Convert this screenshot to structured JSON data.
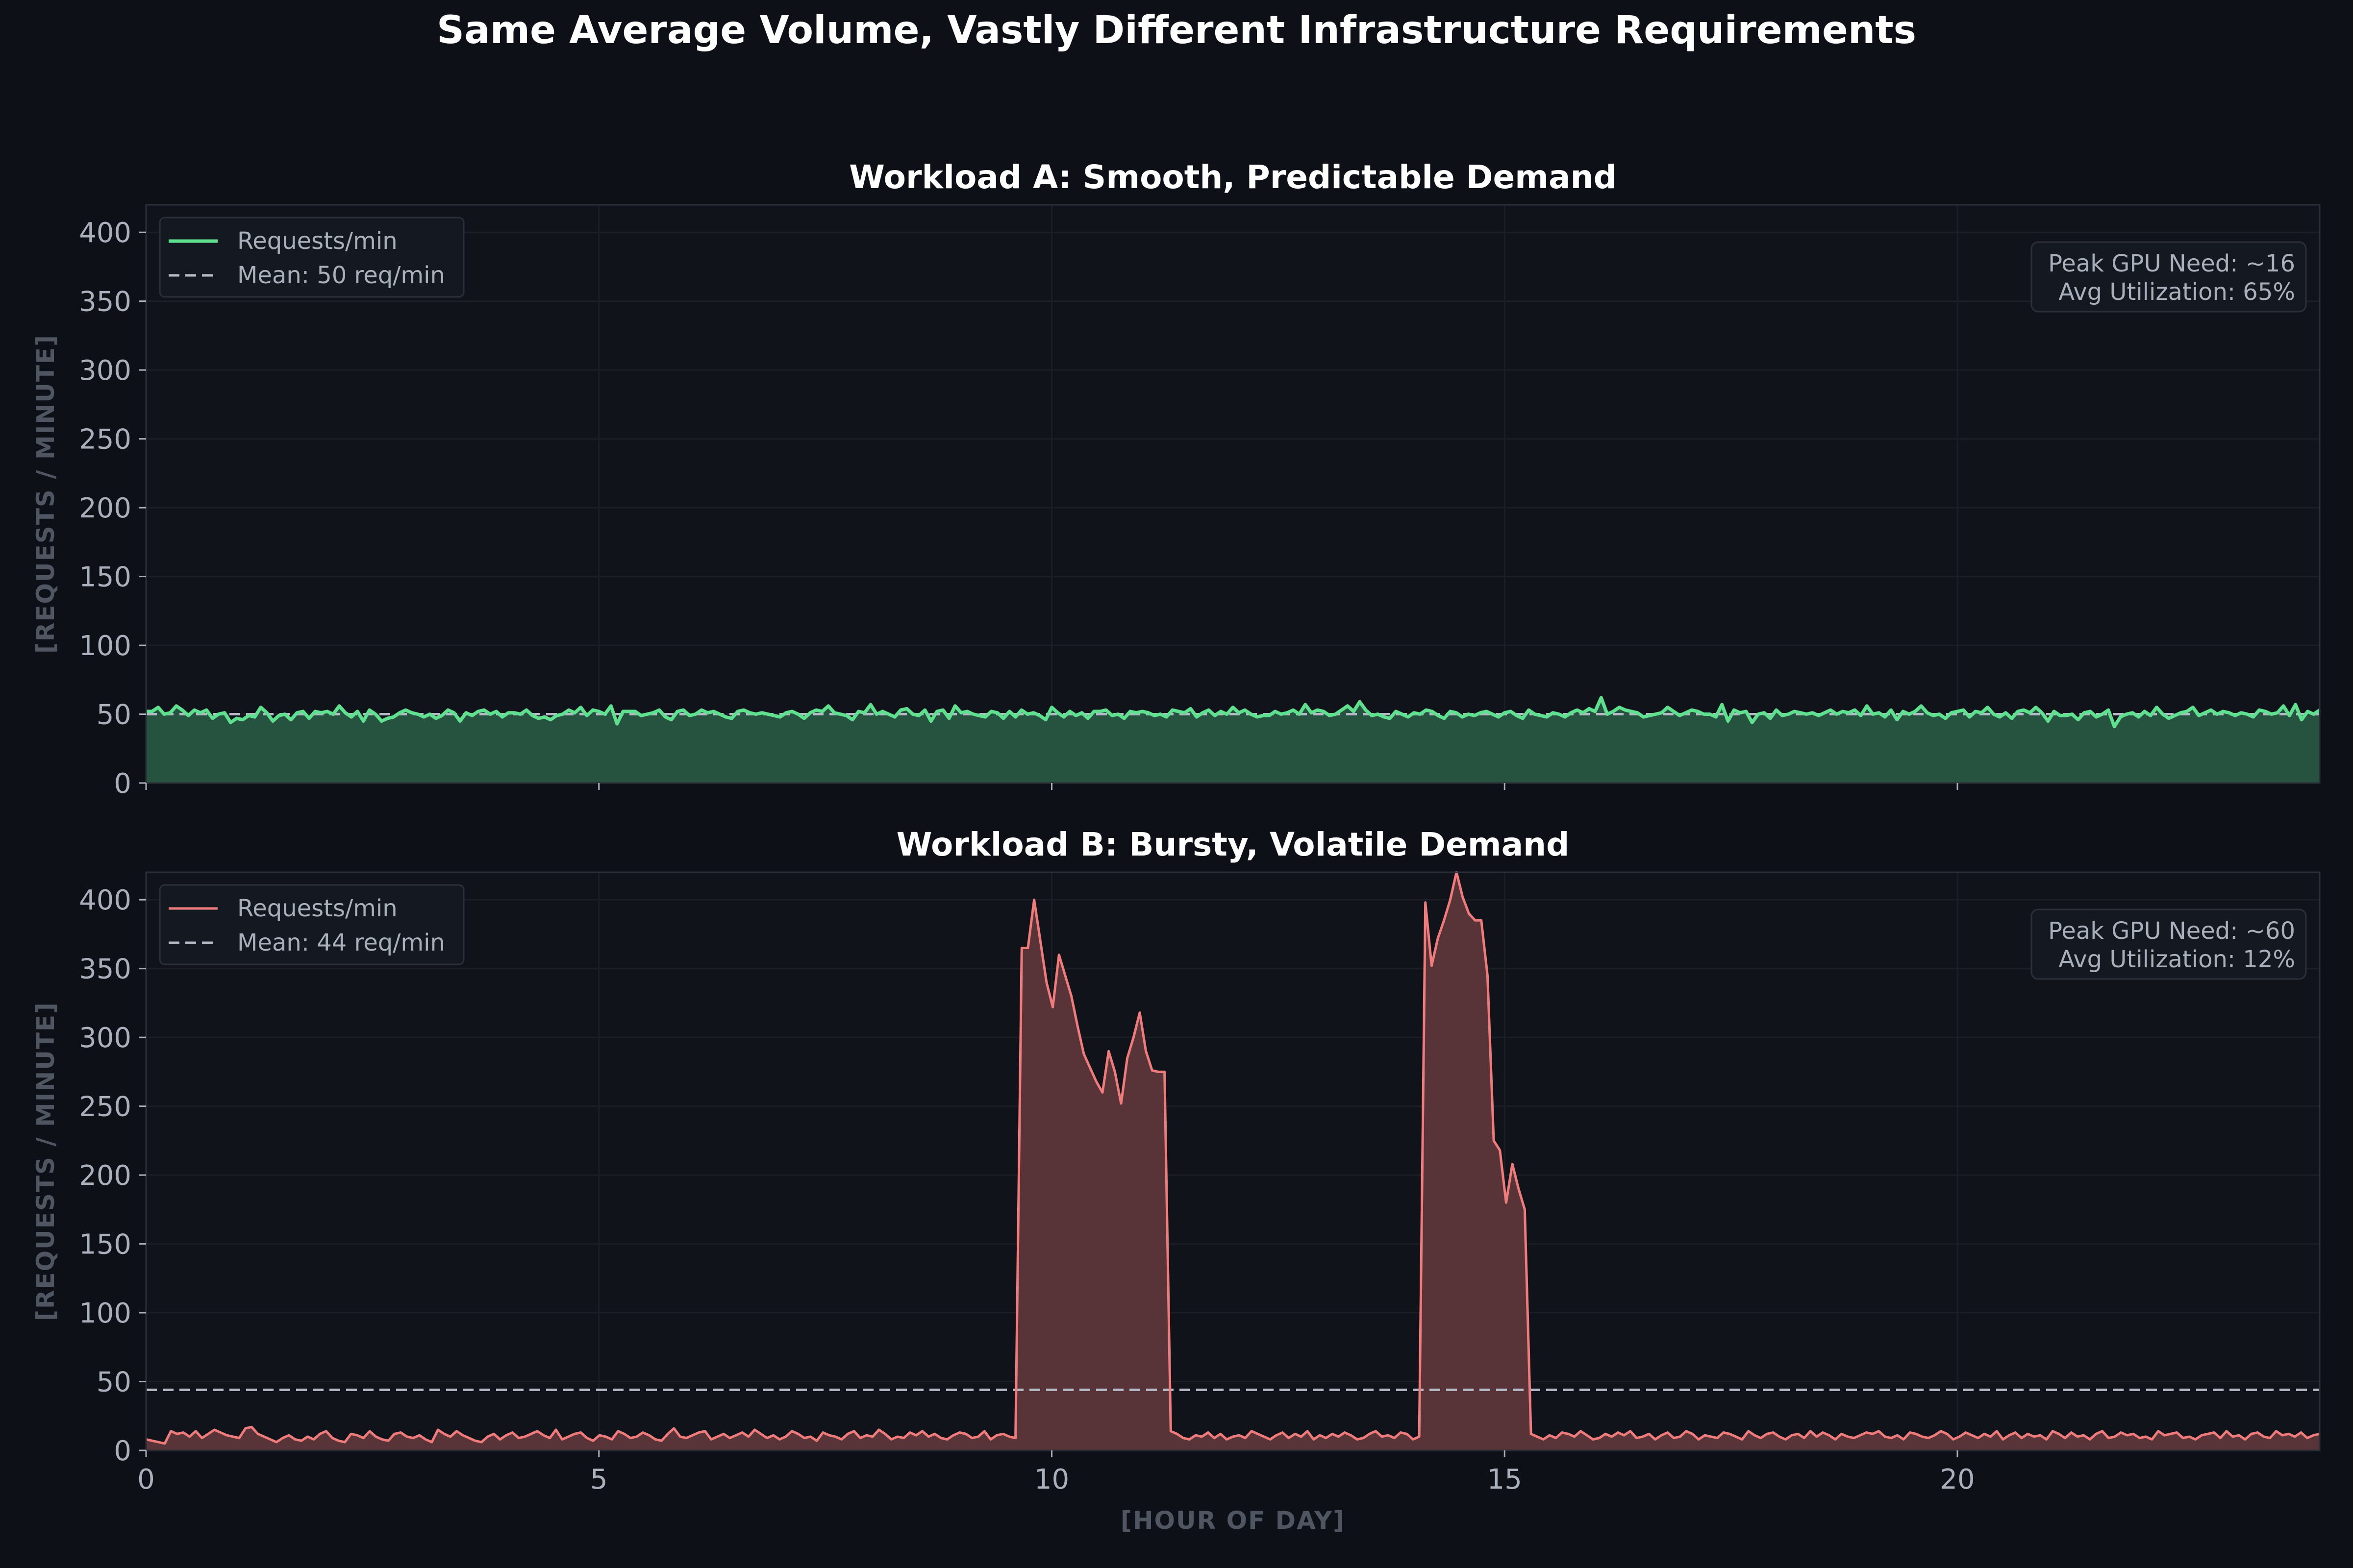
{
  "title": "Same Average Volume, Vastly Different Infrastructure Requirements",
  "colors": {
    "background": "#0d1016",
    "plot_bg": "#10131a",
    "grid": "#1a1e25",
    "spine": "#2a2f37",
    "series_a": "#5ee08e",
    "fill_a": "#265340",
    "series_b": "#f07b7b",
    "fill_b": "#583337",
    "mean_line": "#b5bac6"
  },
  "chart_data": [
    {
      "type": "area",
      "title": "Workload A: Smooth, Predictable Demand",
      "xlabel": "",
      "ylabel": "[REQUESTS / MINUTE]",
      "xlim": [
        0,
        24
      ],
      "ylim": [
        0,
        420
      ],
      "yticks": [
        0,
        50,
        100,
        150,
        200,
        250,
        300,
        350,
        400
      ],
      "xticks": [
        0,
        5,
        10,
        15,
        20
      ],
      "show_xticklabels": false,
      "grid": true,
      "legend_position": "upper-left",
      "legend": [
        "Requests/min",
        "Mean: 50 req/min"
      ],
      "mean": 50,
      "annotation": [
        "Peak GPU Need: ~16",
        "Avg Utilization: 65%"
      ],
      "annotation_position": "upper-right",
      "series": [
        {
          "name": "Requests/min",
          "x_step": 0.0833,
          "values": [
            52,
            52,
            55,
            50,
            51,
            56,
            53,
            49,
            53,
            51,
            53,
            47,
            50,
            51,
            44,
            47,
            46,
            49,
            48,
            55,
            51,
            45,
            49,
            50,
            46,
            51,
            52,
            47,
            52,
            51,
            52,
            50,
            56,
            51,
            48,
            52,
            45,
            53,
            50,
            45,
            47,
            48,
            51,
            53,
            51,
            50,
            48,
            50,
            47,
            49,
            53,
            51,
            45,
            51,
            49,
            52,
            53,
            50,
            52,
            48,
            51,
            51,
            50,
            53,
            49,
            47,
            48,
            46,
            49,
            50,
            53,
            51,
            55,
            49,
            53,
            52,
            50,
            56,
            43,
            52,
            52,
            52,
            49,
            50,
            51,
            53,
            48,
            46,
            52,
            53,
            49,
            50,
            53,
            51,
            52,
            50,
            48,
            47,
            52,
            53,
            51,
            50,
            51,
            50,
            49,
            48,
            51,
            52,
            50,
            47,
            51,
            53,
            52,
            56,
            51,
            50,
            49,
            46,
            52,
            51,
            57,
            50,
            52,
            50,
            48,
            53,
            54,
            50,
            49,
            53,
            45,
            52,
            53,
            47,
            56,
            51,
            52,
            50,
            49,
            48,
            52,
            51,
            47,
            52,
            48,
            53,
            50,
            51,
            49,
            46,
            55,
            51,
            48,
            52,
            49,
            51,
            47,
            52,
            52,
            53,
            49,
            50,
            47,
            52,
            51,
            52,
            51,
            49,
            50,
            48,
            53,
            52,
            51,
            54,
            48,
            51,
            53,
            49,
            52,
            50,
            55,
            51,
            53,
            50,
            48,
            49,
            49,
            52,
            50,
            51,
            53,
            50,
            57,
            51,
            53,
            52,
            49,
            50,
            53,
            56,
            52,
            59,
            53,
            49,
            50,
            48,
            47,
            52,
            50,
            48,
            51,
            50,
            53,
            52,
            49,
            47,
            52,
            51,
            48,
            50,
            49,
            51,
            52,
            50,
            48,
            51,
            52,
            49,
            47,
            53,
            50,
            49,
            48,
            51,
            50,
            48,
            51,
            53,
            51,
            54,
            52,
            62,
            50,
            52,
            55,
            53,
            52,
            51,
            48,
            49,
            50,
            51,
            55,
            52,
            49,
            51,
            53,
            52,
            50,
            50,
            48,
            57,
            45,
            53,
            51,
            52,
            44,
            50,
            51,
            47,
            53,
            49,
            50,
            52,
            51,
            50,
            51,
            49,
            51,
            53,
            50,
            52,
            51,
            53,
            49,
            56,
            50,
            51,
            48,
            53,
            46,
            52,
            50,
            52,
            56,
            51,
            49,
            50,
            47,
            51,
            52,
            53,
            48,
            52,
            51,
            55,
            50,
            48,
            51,
            47,
            52,
            53,
            51,
            55,
            51,
            45,
            52,
            49,
            49,
            50,
            46,
            51,
            52,
            48,
            50,
            53,
            41,
            48,
            50,
            51,
            48,
            52,
            49,
            55,
            50,
            47,
            49,
            51,
            52,
            55,
            49,
            51,
            53,
            50,
            52,
            51,
            49,
            51,
            50,
            48,
            53,
            52,
            50,
            51,
            56,
            49,
            57,
            46,
            52,
            50,
            53
          ]
        }
      ]
    },
    {
      "type": "area",
      "title": "Workload B: Bursty, Volatile Demand",
      "xlabel": "[HOUR OF DAY]",
      "ylabel": "[REQUESTS / MINUTE]",
      "xlim": [
        0,
        24
      ],
      "ylim": [
        0,
        420
      ],
      "yticks": [
        0,
        50,
        100,
        150,
        200,
        250,
        300,
        350,
        400
      ],
      "xticks": [
        0,
        5,
        10,
        15,
        20
      ],
      "show_xticklabels": true,
      "grid": true,
      "legend_position": "upper-left",
      "legend": [
        "Requests/min",
        "Mean: 44 req/min"
      ],
      "mean": 44,
      "annotation": [
        "Peak GPU Need: ~60",
        "Avg Utilization: 12%"
      ],
      "annotation_position": "upper-right",
      "series": [
        {
          "name": "Requests/min",
          "x_step": 0.0833,
          "values": [
            8,
            7,
            6,
            5,
            14,
            12,
            13,
            10,
            14,
            9,
            12,
            15,
            13,
            11,
            10,
            9,
            16,
            17,
            12,
            10,
            8,
            6,
            9,
            11,
            8,
            7,
            10,
            8,
            12,
            14,
            9,
            7,
            6,
            12,
            11,
            9,
            14,
            10,
            8,
            7,
            12,
            13,
            10,
            9,
            11,
            8,
            6,
            15,
            12,
            10,
            14,
            11,
            9,
            7,
            6,
            10,
            12,
            8,
            11,
            13,
            9,
            10,
            12,
            14,
            11,
            9,
            15,
            8,
            10,
            12,
            13,
            9,
            7,
            11,
            10,
            8,
            14,
            12,
            9,
            10,
            13,
            11,
            8,
            7,
            12,
            16,
            10,
            9,
            11,
            13,
            14,
            8,
            10,
            12,
            9,
            11,
            13,
            10,
            15,
            12,
            9,
            11,
            8,
            10,
            14,
            12,
            9,
            10,
            7,
            13,
            11,
            10,
            8,
            12,
            14,
            9,
            11,
            10,
            15,
            12,
            8,
            10,
            9,
            13,
            11,
            14,
            10,
            12,
            9,
            8,
            11,
            13,
            12,
            9,
            10,
            14,
            8,
            11,
            12,
            10,
            9,
            365,
            365,
            400,
            370,
            340,
            322,
            360,
            345,
            330,
            308,
            288,
            278,
            268,
            260,
            290,
            275,
            252,
            285,
            300,
            318,
            290,
            276,
            275,
            275,
            14,
            12,
            9,
            8,
            11,
            10,
            13,
            9,
            12,
            8,
            10,
            11,
            9,
            14,
            12,
            10,
            8,
            11,
            13,
            9,
            12,
            10,
            14,
            8,
            11,
            9,
            12,
            10,
            13,
            11,
            8,
            9,
            12,
            14,
            10,
            11,
            9,
            13,
            12,
            8,
            10,
            398,
            352,
            372,
            385,
            400,
            420,
            402,
            390,
            385,
            385,
            345,
            225,
            218,
            180,
            208,
            190,
            175,
            12,
            10,
            8,
            11,
            9,
            13,
            12,
            10,
            14,
            11,
            8,
            9,
            12,
            10,
            13,
            11,
            14,
            9,
            10,
            12,
            8,
            11,
            13,
            9,
            10,
            14,
            12,
            8,
            11,
            10,
            9,
            13,
            12,
            10,
            8,
            14,
            11,
            9,
            12,
            13,
            10,
            8,
            11,
            12,
            9,
            14,
            10,
            13,
            11,
            8,
            12,
            10,
            9,
            11,
            13,
            12,
            14,
            10,
            9,
            11,
            8,
            13,
            12,
            10,
            9,
            11,
            14,
            12,
            8,
            10,
            13,
            11,
            9,
            12,
            10,
            14,
            8,
            11,
            13,
            9,
            12,
            10,
            11,
            8,
            14,
            12,
            9,
            13,
            10,
            11,
            8,
            12,
            14,
            9,
            10,
            13,
            11,
            12,
            9,
            10,
            8,
            14,
            11,
            12,
            13,
            9,
            10,
            8,
            11,
            12,
            13,
            9,
            14,
            10,
            11,
            8,
            12,
            13,
            10,
            9,
            14,
            11,
            12,
            10,
            13,
            9,
            11,
            12
          ]
        }
      ]
    }
  ]
}
